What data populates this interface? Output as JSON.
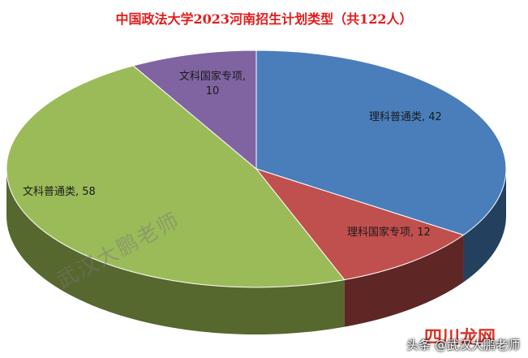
{
  "chart_data": {
    "type": "pie",
    "title": "中国政法大学2023河南招生计划类型（共122人）",
    "labels": [
      "理科普通类",
      "理科国家专项",
      "文科普通类",
      "文科国家专项"
    ],
    "values": [
      42,
      12,
      58,
      10
    ],
    "colors": [
      "#4a7ebb",
      "#c0504d",
      "#9bbb59",
      "#8064a2"
    ],
    "side_colors": [
      "#24405f",
      "#5e2624",
      "#56682e",
      "#43345a"
    ]
  },
  "watermark": "武汉大鹏老师",
  "site_mark": "四川龙网",
  "footer_brand": "头条 @武汉大鹏老师"
}
